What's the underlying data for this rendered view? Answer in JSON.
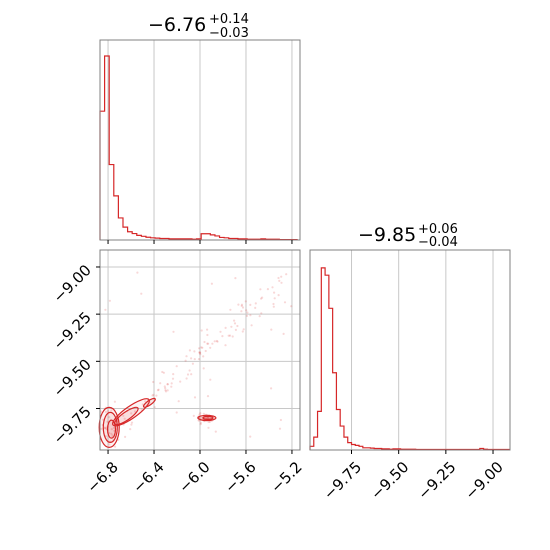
{
  "chart_data": {
    "type": "corner",
    "color": "#d62728",
    "panels": [
      {
        "id": "hist-x",
        "type": "histogram-step",
        "title_main": "−6.76",
        "title_sup": "+0.14",
        "title_sub": "−0.03",
        "xlim": [
          -6.87,
          -5.13
        ],
        "ylim": [
          0,
          1
        ],
        "grid_x": [
          -6.8,
          -6.4,
          -6.0,
          -5.6,
          -5.2
        ],
        "bins_x": [
          -6.87,
          -6.83,
          -6.79,
          -6.75,
          -6.71,
          -6.67,
          -6.63,
          -6.59,
          -6.55,
          -6.51,
          -6.47,
          -6.43,
          -6.39,
          -6.35,
          -6.31,
          -6.27,
          -6.23,
          -6.19,
          -6.15,
          -6.11,
          -6.07,
          -6.03,
          -5.99,
          -5.95,
          -5.91,
          -5.87,
          -5.83,
          -5.79,
          -5.75,
          -5.71,
          -5.67,
          -5.63,
          -5.59,
          -5.55,
          -5.51,
          -5.47,
          -5.43,
          -5.39,
          -5.35,
          -5.31,
          -5.27,
          -5.23,
          -5.19,
          -5.15
        ],
        "values": [
          0.7,
          1.0,
          0.41,
          0.24,
          0.12,
          0.07,
          0.045,
          0.035,
          0.025,
          0.02,
          0.015,
          0.012,
          0.01,
          0.008,
          0.008,
          0.006,
          0.006,
          0.006,
          0.006,
          0.006,
          0.004,
          0.006,
          0.034,
          0.034,
          0.028,
          0.022,
          0.014,
          0.012,
          0.008,
          0.008,
          0.006,
          0.006,
          0.004,
          0.004,
          0.004,
          0.006,
          0.004,
          0.004,
          0.004,
          0.002,
          0.002,
          0.002,
          0.002
        ]
      },
      {
        "id": "hist-y",
        "type": "histogram-step",
        "title_main": "−9.85",
        "title_sup": "+0.06",
        "title_sub": "−0.04",
        "xlim": [
          -9.97,
          -8.91
        ],
        "ylim": [
          0,
          1
        ],
        "grid_x": [
          -9.75,
          -9.5,
          -9.25,
          -9.0
        ],
        "tick_labels": [
          "−9.75",
          "−9.50",
          "−9.25",
          "−9.00"
        ],
        "bins_x": [
          -9.97,
          -9.95,
          -9.93,
          -9.91,
          -9.89,
          -9.87,
          -9.85,
          -9.83,
          -9.81,
          -9.79,
          -9.77,
          -9.75,
          -9.73,
          -9.71,
          -9.69,
          -9.67,
          -9.65,
          -9.63,
          -9.61,
          -9.59,
          -9.57,
          -9.55,
          -9.53,
          -9.51,
          -9.49,
          -9.47,
          -9.45,
          -9.43,
          -9.41,
          -9.39,
          -9.37,
          -9.35,
          -9.33,
          -9.31,
          -9.29,
          -9.27,
          -9.25,
          -9.23,
          -9.21,
          -9.19,
          -9.17,
          -9.15,
          -9.13,
          -9.11,
          -9.09,
          -9.07,
          -9.05,
          -9.03,
          -9.01,
          -8.99,
          -8.97,
          -8.95,
          -8.93,
          -8.91
        ],
        "values": [
          0.02,
          0.07,
          0.21,
          0.99,
          0.95,
          0.77,
          0.42,
          0.22,
          0.13,
          0.07,
          0.04,
          0.03,
          0.025,
          0.02,
          0.012,
          0.012,
          0.01,
          0.008,
          0.008,
          0.006,
          0.006,
          0.004,
          0.006,
          0.006,
          0.004,
          0.004,
          0.004,
          0.004,
          0.003,
          0.003,
          0.003,
          0.003,
          0.003,
          0.003,
          0.003,
          0.003,
          0.003,
          0.003,
          0.003,
          0.003,
          0.003,
          0.003,
          0.003,
          0.003,
          0.003,
          0.008,
          0.004,
          0.003,
          0.003,
          0.003,
          0.003,
          0.003,
          0.003
        ]
      },
      {
        "id": "joint",
        "type": "scatter-contour",
        "xlim": [
          -6.87,
          -5.13
        ],
        "ylim": [
          -9.97,
          -8.91
        ],
        "x_ticks": [
          -6.8,
          -6.4,
          -6.0,
          -5.6,
          -5.2
        ],
        "x_tick_labels": [
          "−6.8",
          "−6.4",
          "−6.0",
          "−5.6",
          "−5.2"
        ],
        "y_ticks": [
          -9.0,
          -9.25,
          -9.5,
          -9.75
        ],
        "y_tick_labels": [
          "−9.00",
          "−9.25",
          "−9.50",
          "−9.75"
        ]
      }
    ]
  }
}
